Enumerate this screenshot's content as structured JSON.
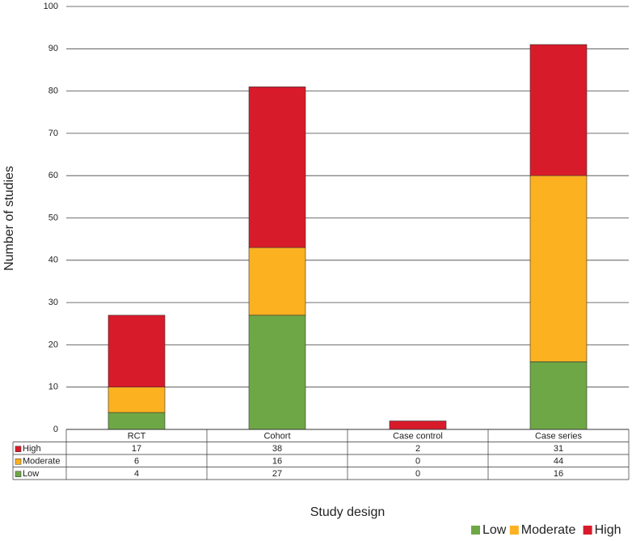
{
  "chart_data": {
    "type": "stacked_bar",
    "y_label": "Number of studies",
    "x_label": "Study design",
    "categories": [
      "RCT",
      "Cohort",
      "Case control",
      "Case series"
    ],
    "series": [
      {
        "name": "Low",
        "color": "#6ea846",
        "values": [
          4,
          27,
          0,
          16
        ]
      },
      {
        "name": "Moderate",
        "color": "#fbb120",
        "values": [
          6,
          16,
          0,
          44
        ]
      },
      {
        "name": "High",
        "color": "#d81b2a",
        "values": [
          17,
          38,
          2,
          31
        ]
      }
    ],
    "ylim": [
      0,
      100
    ],
    "yticks": [
      0,
      10,
      20,
      30,
      40,
      50,
      60,
      70,
      80,
      90,
      100
    ],
    "grid": true,
    "legend": "bottom-right"
  }
}
